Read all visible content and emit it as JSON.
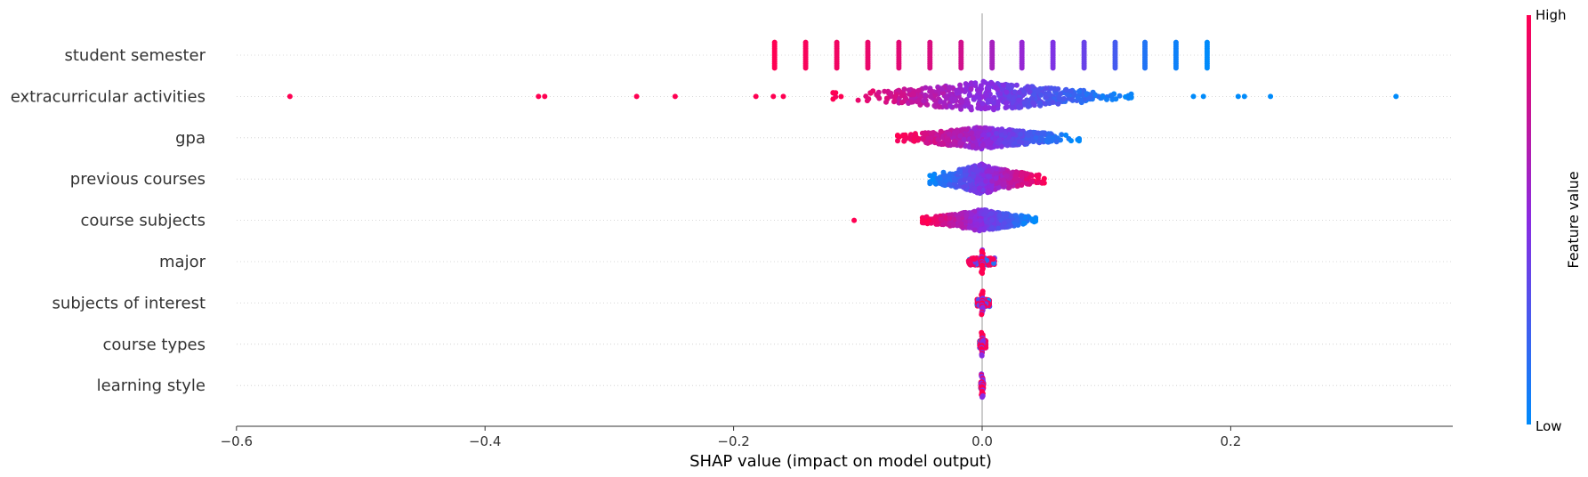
{
  "chart_data": {
    "type": "scatter",
    "subtype": "shap-beeswarm",
    "xlabel": "SHAP value (impact on model output)",
    "x_ticks": [
      -0.6,
      -0.4,
      -0.2,
      0.0,
      0.2
    ],
    "x_tick_labels": [
      "−0.6",
      "−0.4",
      "−0.2",
      "0.0",
      "0.2"
    ],
    "xlim": [
      -0.61,
      0.378
    ],
    "features": [
      "student semester",
      "extracurricular activities",
      "gpa",
      "previous courses",
      "course subjects",
      "major",
      "subjects of interest",
      "course types",
      "learning style"
    ],
    "colorbar": {
      "title": "Feature value",
      "high_label": "High",
      "low_label": "Low",
      "high_color": "#ff0052",
      "mid_color": "#8a2be2",
      "low_color": "#008bfb"
    },
    "series": [
      {
        "feature": "student semester",
        "pattern": "discrete-columns",
        "columns": [
          {
            "x": -0.167,
            "value": 1.0
          },
          {
            "x": -0.142,
            "value": 0.97
          },
          {
            "x": -0.117,
            "value": 0.94
          },
          {
            "x": -0.092,
            "value": 0.91
          },
          {
            "x": -0.067,
            "value": 0.88
          },
          {
            "x": -0.042,
            "value": 0.84
          },
          {
            "x": -0.017,
            "value": 0.8
          },
          {
            "x": 0.008,
            "value": 0.62
          },
          {
            "x": 0.032,
            "value": 0.55
          },
          {
            "x": 0.057,
            "value": 0.46
          },
          {
            "x": 0.082,
            "value": 0.38
          },
          {
            "x": 0.107,
            "value": 0.25
          },
          {
            "x": 0.131,
            "value": 0.12
          },
          {
            "x": 0.156,
            "value": 0.05
          },
          {
            "x": 0.181,
            "value": 0.0
          }
        ]
      },
      {
        "feature": "extracurricular activities",
        "pattern": "continuous",
        "main_range": [
          -0.12,
          0.12
        ],
        "outliers": [
          {
            "x": -0.557,
            "value": 1.0
          },
          {
            "x": -0.357,
            "value": 1.0
          },
          {
            "x": -0.352,
            "value": 1.0
          },
          {
            "x": -0.278,
            "value": 1.0
          },
          {
            "x": -0.247,
            "value": 1.0
          },
          {
            "x": -0.182,
            "value": 1.0
          },
          {
            "x": -0.168,
            "value": 1.0
          },
          {
            "x": -0.16,
            "value": 1.0
          },
          {
            "x": 0.17,
            "value": 0.0
          },
          {
            "x": 0.178,
            "value": 0.0
          },
          {
            "x": 0.206,
            "value": 0.0
          },
          {
            "x": 0.211,
            "value": 0.0
          },
          {
            "x": 0.232,
            "value": 0.0
          },
          {
            "x": 0.333,
            "value": 0.0
          }
        ]
      },
      {
        "feature": "gpa",
        "pattern": "continuous",
        "main_range": [
          -0.068,
          0.078
        ]
      },
      {
        "feature": "previous courses",
        "pattern": "continuous-reversed",
        "main_range": [
          -0.042,
          0.05
        ]
      },
      {
        "feature": "course subjects",
        "pattern": "continuous",
        "main_range": [
          -0.048,
          0.043
        ],
        "outliers": [
          {
            "x": -0.103,
            "value": 1.0
          },
          {
            "x": -0.048,
            "value": 1.0
          },
          {
            "x": -0.043,
            "value": 1.0
          }
        ]
      },
      {
        "feature": "major",
        "pattern": "narrow-mixed",
        "main_range": [
          -0.011,
          0.01
        ]
      },
      {
        "feature": "subjects of interest",
        "pattern": "narrow-mixed",
        "main_range": [
          -0.004,
          0.006
        ]
      },
      {
        "feature": "course types",
        "pattern": "narrow-mixed",
        "main_range": [
          -0.002,
          0.003
        ]
      },
      {
        "feature": "learning style",
        "pattern": "narrow-mixed",
        "main_range": [
          -0.001,
          0.001
        ]
      }
    ]
  }
}
